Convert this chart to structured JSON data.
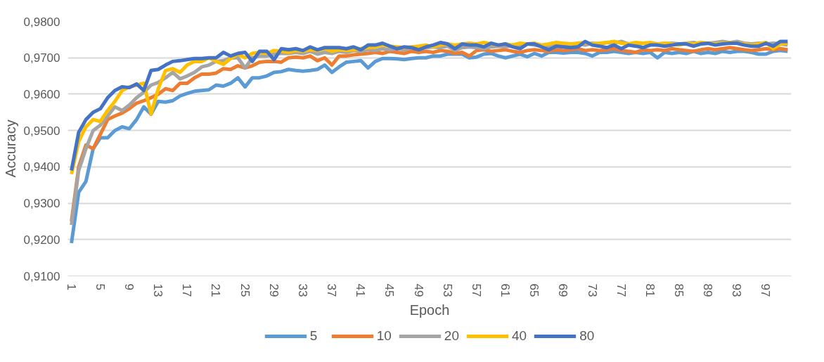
{
  "chart_data": {
    "type": "line",
    "xlabel": "Epoch",
    "ylabel": "Accuracy",
    "categories": [
      "1",
      null,
      null,
      null,
      "5",
      null,
      null,
      null,
      "9",
      null,
      null,
      null,
      "13",
      null,
      null,
      null,
      "17",
      null,
      null,
      null,
      "21",
      null,
      null,
      null,
      "25",
      null,
      null,
      null,
      "29",
      null,
      null,
      null,
      "33",
      null,
      null,
      null,
      "37",
      null,
      null,
      null,
      "41",
      null,
      null,
      null,
      "45",
      null,
      null,
      null,
      "49",
      null,
      null,
      null,
      "53",
      null,
      null,
      null,
      "57",
      null,
      null,
      null,
      "61",
      null,
      null,
      null,
      "65",
      null,
      null,
      null,
      "69",
      null,
      null,
      null,
      "73",
      null,
      null,
      null,
      "77",
      null,
      null,
      null,
      "81",
      null,
      null,
      null,
      "85",
      null,
      null,
      null,
      "89",
      null,
      null,
      null,
      "93",
      null,
      null,
      null,
      "97",
      null,
      null,
      null
    ],
    "ylim": [
      0.91,
      0.98
    ],
    "yticks": [
      {
        "value": 0.91,
        "label": "0,9100"
      },
      {
        "value": 0.92,
        "label": "0,9200"
      },
      {
        "value": 0.93,
        "label": "0,9300"
      },
      {
        "value": 0.94,
        "label": "0,9400"
      },
      {
        "value": 0.95,
        "label": "0,9500"
      },
      {
        "value": 0.96,
        "label": "0,9600"
      },
      {
        "value": 0.97,
        "label": "0,9700"
      },
      {
        "value": 0.98,
        "label": "0,9800"
      }
    ],
    "grid": "y",
    "legend": "bottom",
    "line_style": "solid",
    "series": [
      {
        "name": "5",
        "color": "#5b9bd5",
        "values": [
          0.919,
          0.933,
          0.936,
          0.945,
          0.948,
          0.948,
          0.95,
          0.951,
          0.9505,
          0.953,
          0.9565,
          0.9545,
          0.958,
          0.9578,
          0.9582,
          0.9595,
          0.9602,
          0.9608,
          0.961,
          0.9612,
          0.9625,
          0.9622,
          0.963,
          0.9645,
          0.962,
          0.9645,
          0.9645,
          0.965,
          0.966,
          0.9662,
          0.9668,
          0.9665,
          0.9663,
          0.9665,
          0.9668,
          0.968,
          0.966,
          0.9675,
          0.9688,
          0.969,
          0.9692,
          0.9672,
          0.969,
          0.9698,
          0.9698,
          0.9697,
          0.9695,
          0.9698,
          0.97,
          0.97,
          0.9705,
          0.9705,
          0.971,
          0.971,
          0.971,
          0.97,
          0.9702,
          0.971,
          0.9712,
          0.9705,
          0.97,
          0.9705,
          0.971,
          0.9703,
          0.9712,
          0.9705,
          0.9715,
          0.9715,
          0.9713,
          0.9715,
          0.9715,
          0.9712,
          0.9705,
          0.9715,
          0.9715,
          0.9718,
          0.9715,
          0.9712,
          0.9715,
          0.9712,
          0.9715,
          0.97,
          0.9715,
          0.9712,
          0.9715,
          0.9712,
          0.9718,
          0.9712,
          0.9715,
          0.9712,
          0.9718,
          0.9715,
          0.9718,
          0.9718,
          0.9715,
          0.971,
          0.971,
          0.9718,
          0.972,
          0.9718
        ]
      },
      {
        "name": "10",
        "color": "#ed7d31",
        "values": [
          0.925,
          0.94,
          0.946,
          0.945,
          0.949,
          0.953,
          0.954,
          0.9548,
          0.956,
          0.9575,
          0.9582,
          0.959,
          0.96,
          0.9615,
          0.961,
          0.963,
          0.963,
          0.9645,
          0.9655,
          0.9655,
          0.9658,
          0.967,
          0.9668,
          0.9678,
          0.9672,
          0.9678,
          0.9688,
          0.969,
          0.969,
          0.9688,
          0.97,
          0.9702,
          0.97,
          0.9705,
          0.9692,
          0.97,
          0.968,
          0.9705,
          0.9705,
          0.9708,
          0.971,
          0.9712,
          0.9715,
          0.9712,
          0.9718,
          0.9715,
          0.9712,
          0.9718,
          0.9715,
          0.9718,
          0.9715,
          0.972,
          0.9718,
          0.9712,
          0.9715,
          0.9705,
          0.972,
          0.9722,
          0.9718,
          0.972,
          0.9722,
          0.9718,
          0.9715,
          0.972,
          0.9722,
          0.972,
          0.9718,
          0.9722,
          0.972,
          0.9722,
          0.9725,
          0.972,
          0.9722,
          0.972,
          0.9722,
          0.9725,
          0.972,
          0.9718,
          0.9715,
          0.9722,
          0.972,
          0.9722,
          0.972,
          0.9725,
          0.9722,
          0.972,
          0.9718,
          0.9722,
          0.9725,
          0.9722,
          0.9725,
          0.9728,
          0.9725,
          0.9722,
          0.972,
          0.9722,
          0.9725,
          0.9722,
          0.9725,
          0.9722
        ]
      },
      {
        "name": "20",
        "color": "#a5a5a5",
        "values": [
          0.924,
          0.939,
          0.945,
          0.95,
          0.9515,
          0.954,
          0.9565,
          0.9555,
          0.957,
          0.959,
          0.9605,
          0.9625,
          0.9632,
          0.9645,
          0.966,
          0.9642,
          0.965,
          0.966,
          0.9675,
          0.968,
          0.969,
          0.9692,
          0.97,
          0.97,
          0.9672,
          0.97,
          0.9705,
          0.9705,
          0.971,
          0.9712,
          0.9712,
          0.9715,
          0.9712,
          0.9718,
          0.971,
          0.9715,
          0.9712,
          0.9718,
          0.9715,
          0.972,
          0.9718,
          0.9722,
          0.972,
          0.9725,
          0.9722,
          0.9725,
          0.9722,
          0.9728,
          0.9725,
          0.9728,
          0.973,
          0.9728,
          0.9732,
          0.972,
          0.9728,
          0.973,
          0.9728,
          0.9725,
          0.973,
          0.9732,
          0.973,
          0.9735,
          0.9732,
          0.9738,
          0.9735,
          0.9732,
          0.973,
          0.9735,
          0.9738,
          0.9735,
          0.9738,
          0.9735,
          0.974,
          0.9738,
          0.9742,
          0.974,
          0.9745,
          0.9738,
          0.9735,
          0.974,
          0.9738,
          0.9735,
          0.9738,
          0.974,
          0.9738,
          0.974,
          0.9742,
          0.9738,
          0.974,
          0.9742,
          0.9745,
          0.9742,
          0.9745,
          0.974,
          0.9738,
          0.974,
          0.9738,
          0.974,
          0.9738,
          0.9735
        ]
      },
      {
        "name": "40",
        "color": "#ffc000",
        "values": [
          0.938,
          0.947,
          0.951,
          0.953,
          0.9525,
          0.9555,
          0.958,
          0.961,
          0.962,
          0.9625,
          0.963,
          0.9545,
          0.9615,
          0.9665,
          0.967,
          0.966,
          0.968,
          0.969,
          0.969,
          0.97,
          0.969,
          0.9682,
          0.9698,
          0.971,
          0.97,
          0.9712,
          0.9715,
          0.9712,
          0.972,
          0.9718,
          0.9715,
          0.972,
          0.9718,
          0.9722,
          0.972,
          0.9725,
          0.9718,
          0.9722,
          0.972,
          0.9722,
          0.9725,
          0.9728,
          0.973,
          0.9735,
          0.9732,
          0.973,
          0.9728,
          0.973,
          0.9732,
          0.9735,
          0.973,
          0.9735,
          0.9738,
          0.9735,
          0.9738,
          0.974,
          0.9738,
          0.9742,
          0.9738,
          0.9735,
          0.9738,
          0.9735,
          0.974,
          0.9738,
          0.974,
          0.9735,
          0.9738,
          0.9742,
          0.974,
          0.9738,
          0.974,
          0.9742,
          0.9738,
          0.974,
          0.9742,
          0.9745,
          0.974,
          0.9738,
          0.9742,
          0.974,
          0.9742,
          0.9738,
          0.974,
          0.9738,
          0.9735,
          0.974,
          0.9738,
          0.9742,
          0.974,
          0.9738,
          0.974,
          0.9742,
          0.974,
          0.9738,
          0.9735,
          0.9738,
          0.9742,
          0.9725,
          0.9738,
          0.974
        ]
      },
      {
        "name": "80",
        "color": "#4472c4",
        "values": [
          0.939,
          0.9495,
          0.953,
          0.955,
          0.956,
          0.959,
          0.961,
          0.962,
          0.9618,
          0.9628,
          0.961,
          0.9665,
          0.9668,
          0.968,
          0.969,
          0.9692,
          0.9695,
          0.9698,
          0.9698,
          0.97,
          0.97,
          0.9715,
          0.9705,
          0.9712,
          0.9715,
          0.969,
          0.9718,
          0.9718,
          0.9695,
          0.9725,
          0.9722,
          0.9725,
          0.972,
          0.973,
          0.9722,
          0.9728,
          0.9728,
          0.9728,
          0.9725,
          0.973,
          0.9722,
          0.9735,
          0.9735,
          0.974,
          0.9732,
          0.9725,
          0.973,
          0.9728,
          0.9722,
          0.973,
          0.9735,
          0.9742,
          0.9738,
          0.9725,
          0.9738,
          0.9735,
          0.9735,
          0.973,
          0.974,
          0.9735,
          0.9738,
          0.973,
          0.9725,
          0.9738,
          0.9738,
          0.973,
          0.9722,
          0.9732,
          0.973,
          0.9728,
          0.973,
          0.9745,
          0.9735,
          0.9732,
          0.9728,
          0.9735,
          0.9725,
          0.9735,
          0.9732,
          0.9728,
          0.9735,
          0.9735,
          0.9732,
          0.9735,
          0.9738,
          0.9738,
          0.9732,
          0.9738,
          0.974,
          0.9735,
          0.9738,
          0.974,
          0.974,
          0.9735,
          0.9732,
          0.9732,
          0.974,
          0.9732,
          0.9745,
          0.9745
        ]
      }
    ]
  }
}
